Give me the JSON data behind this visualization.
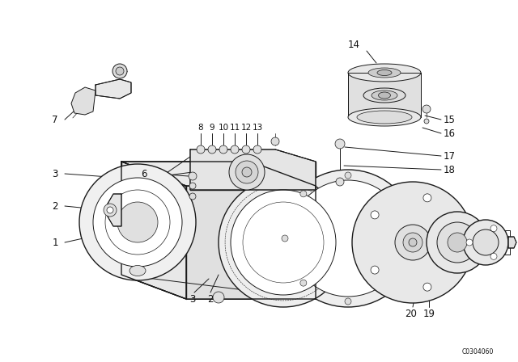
{
  "bg_color": "#ffffff",
  "watermark": "C0304060",
  "line_color": "#1a1a1a",
  "text_color": "#111111",
  "label_fontsize": 8.5,
  "label_fontsize_sm": 7.5,
  "fig_w": 6.4,
  "fig_h": 4.48,
  "dpi": 100
}
